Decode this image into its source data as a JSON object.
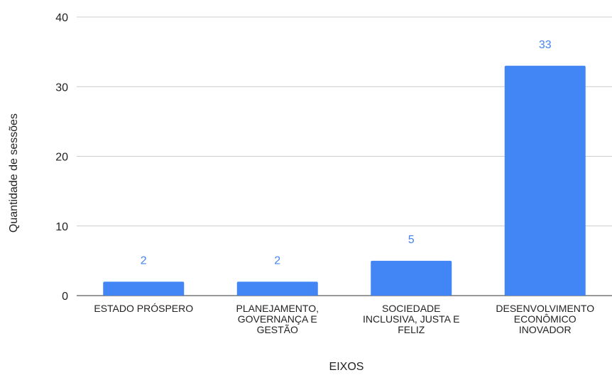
{
  "chart_data": {
    "type": "bar",
    "title": "",
    "xlabel": "EIXOS",
    "ylabel": "Quantidade de sessões",
    "categories": [
      [
        "ESTADO PRÓSPERO"
      ],
      [
        "PLANEJAMENTO,",
        "GOVERNANÇA E",
        "GESTÃO"
      ],
      [
        "SOCIEDADE",
        "INCLUSIVA, JUSTA E",
        "FELIZ"
      ],
      [
        "DESENVOLVIMENTO",
        "ECONÔMICO",
        "INOVADOR"
      ]
    ],
    "values": [
      2,
      2,
      5,
      33
    ],
    "data_labels": [
      "2",
      "2",
      "5",
      "33"
    ],
    "ylim": [
      0,
      40
    ],
    "yticks": [
      0,
      10,
      20,
      30,
      40
    ],
    "grid": true,
    "legend": "none",
    "colors": {
      "bar": "#4285f4",
      "data_label": "#4285f4",
      "grid": "#cccccc",
      "baseline": "#333333",
      "text": "#222222"
    }
  }
}
